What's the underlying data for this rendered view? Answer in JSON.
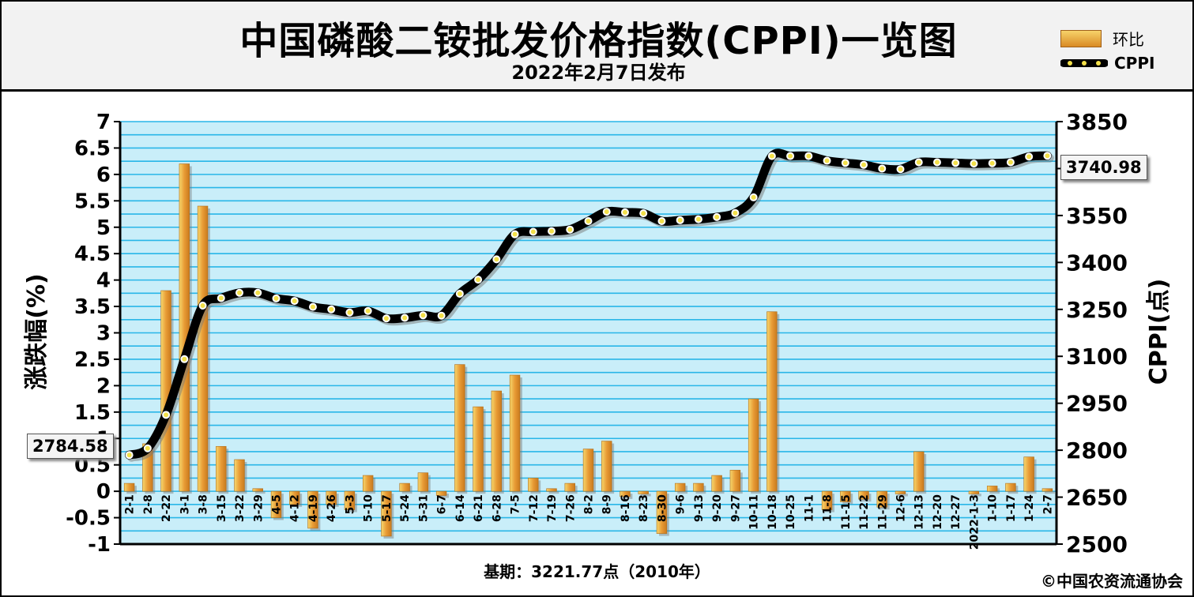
{
  "title": "中国磷酸二铵批发价格指数(CPPI)一览图",
  "subtitle": "2022年2月7日发布",
  "legend": {
    "bar_label": "环比",
    "line_label": "CPPI"
  },
  "left_axis_label": "涨跌幅(%)",
  "right_axis_label": "CPPI(点)",
  "base_period": "基期：3221.77点（2010年）",
  "copyright": "©中国农资流通协会",
  "callouts": {
    "start_value": "2784.58",
    "end_value": "3740.98"
  },
  "colors": {
    "plot_bg": "#c9eef9",
    "grid": "#29b6e8",
    "bar": "#e8a33a",
    "line": "#000000",
    "marker": "#f3e04a"
  },
  "chart_data": {
    "type": "bar",
    "categories": [
      "2-1",
      "2-8",
      "2-22",
      "3-1",
      "3-8",
      "3-15",
      "3-22",
      "3-29",
      "4-5",
      "4-12",
      "4-19",
      "4-26",
      "5-3",
      "5-10",
      "5-17",
      "5-24",
      "5-31",
      "6-7",
      "6-14",
      "6-21",
      "6-28",
      "7-5",
      "7-12",
      "7-19",
      "7-26",
      "8-2",
      "8-9",
      "8-16",
      "8-23",
      "8-30",
      "9-6",
      "9-13",
      "9-20",
      "9-27",
      "10-11",
      "10-18",
      "10-25",
      "11-1",
      "11-8",
      "11-15",
      "11-22",
      "11-29",
      "12-6",
      "12-13",
      "12-20",
      "12-27",
      "2022-1-3",
      "1-10",
      "1-17",
      "1-24",
      "2-7"
    ],
    "left_ticks": [
      "7",
      "6.5",
      "6",
      "5.5",
      "5",
      "4.5",
      "4",
      "3.5",
      "3",
      "2.5",
      "2",
      "1.5",
      "1",
      "0.5",
      "0",
      "-0.5",
      "-1"
    ],
    "right_ticks": [
      "3850",
      "3700",
      "3550",
      "3400",
      "3250",
      "3100",
      "2950",
      "2800",
      "2650",
      "2500"
    ],
    "ylim_left": [
      -1,
      7
    ],
    "ylim_right": [
      2500,
      3850
    ],
    "series": [
      {
        "name": "环比",
        "axis": "left",
        "type": "bar",
        "values": [
          0.15,
          0.9,
          3.8,
          6.2,
          5.4,
          0.85,
          0.6,
          0.05,
          -0.5,
          -0.25,
          -0.7,
          -0.25,
          -0.35,
          0.3,
          -0.85,
          0.15,
          0.35,
          -0.08,
          2.4,
          1.6,
          1.9,
          2.2,
          0.25,
          0.05,
          0.15,
          0.8,
          0.95,
          -0.1,
          -0.05,
          -0.8,
          0.15,
          0.15,
          0.3,
          0.4,
          1.75,
          3.4,
          0.0,
          0.0,
          -0.35,
          -0.2,
          -0.15,
          -0.3,
          -0.05,
          0.75,
          0.0,
          0.0,
          -0.05,
          0.1,
          0.15,
          0.65,
          0.05
        ]
      },
      {
        "name": "CPPI",
        "axis": "right",
        "type": "line",
        "values": [
          2784.58,
          2806,
          2913,
          3091,
          3262,
          3286,
          3303,
          3303,
          3285,
          3277,
          3258,
          3250,
          3240,
          3245,
          3221,
          3223,
          3231,
          3230,
          3300,
          3345,
          3410,
          3490,
          3498,
          3500,
          3505,
          3532,
          3562,
          3560,
          3557,
          3532,
          3535,
          3538,
          3545,
          3558,
          3608,
          3740,
          3740,
          3740,
          3725,
          3718,
          3712,
          3700,
          3698,
          3720,
          3720,
          3718,
          3716,
          3717,
          3720,
          3738,
          3740.98
        ]
      }
    ]
  }
}
